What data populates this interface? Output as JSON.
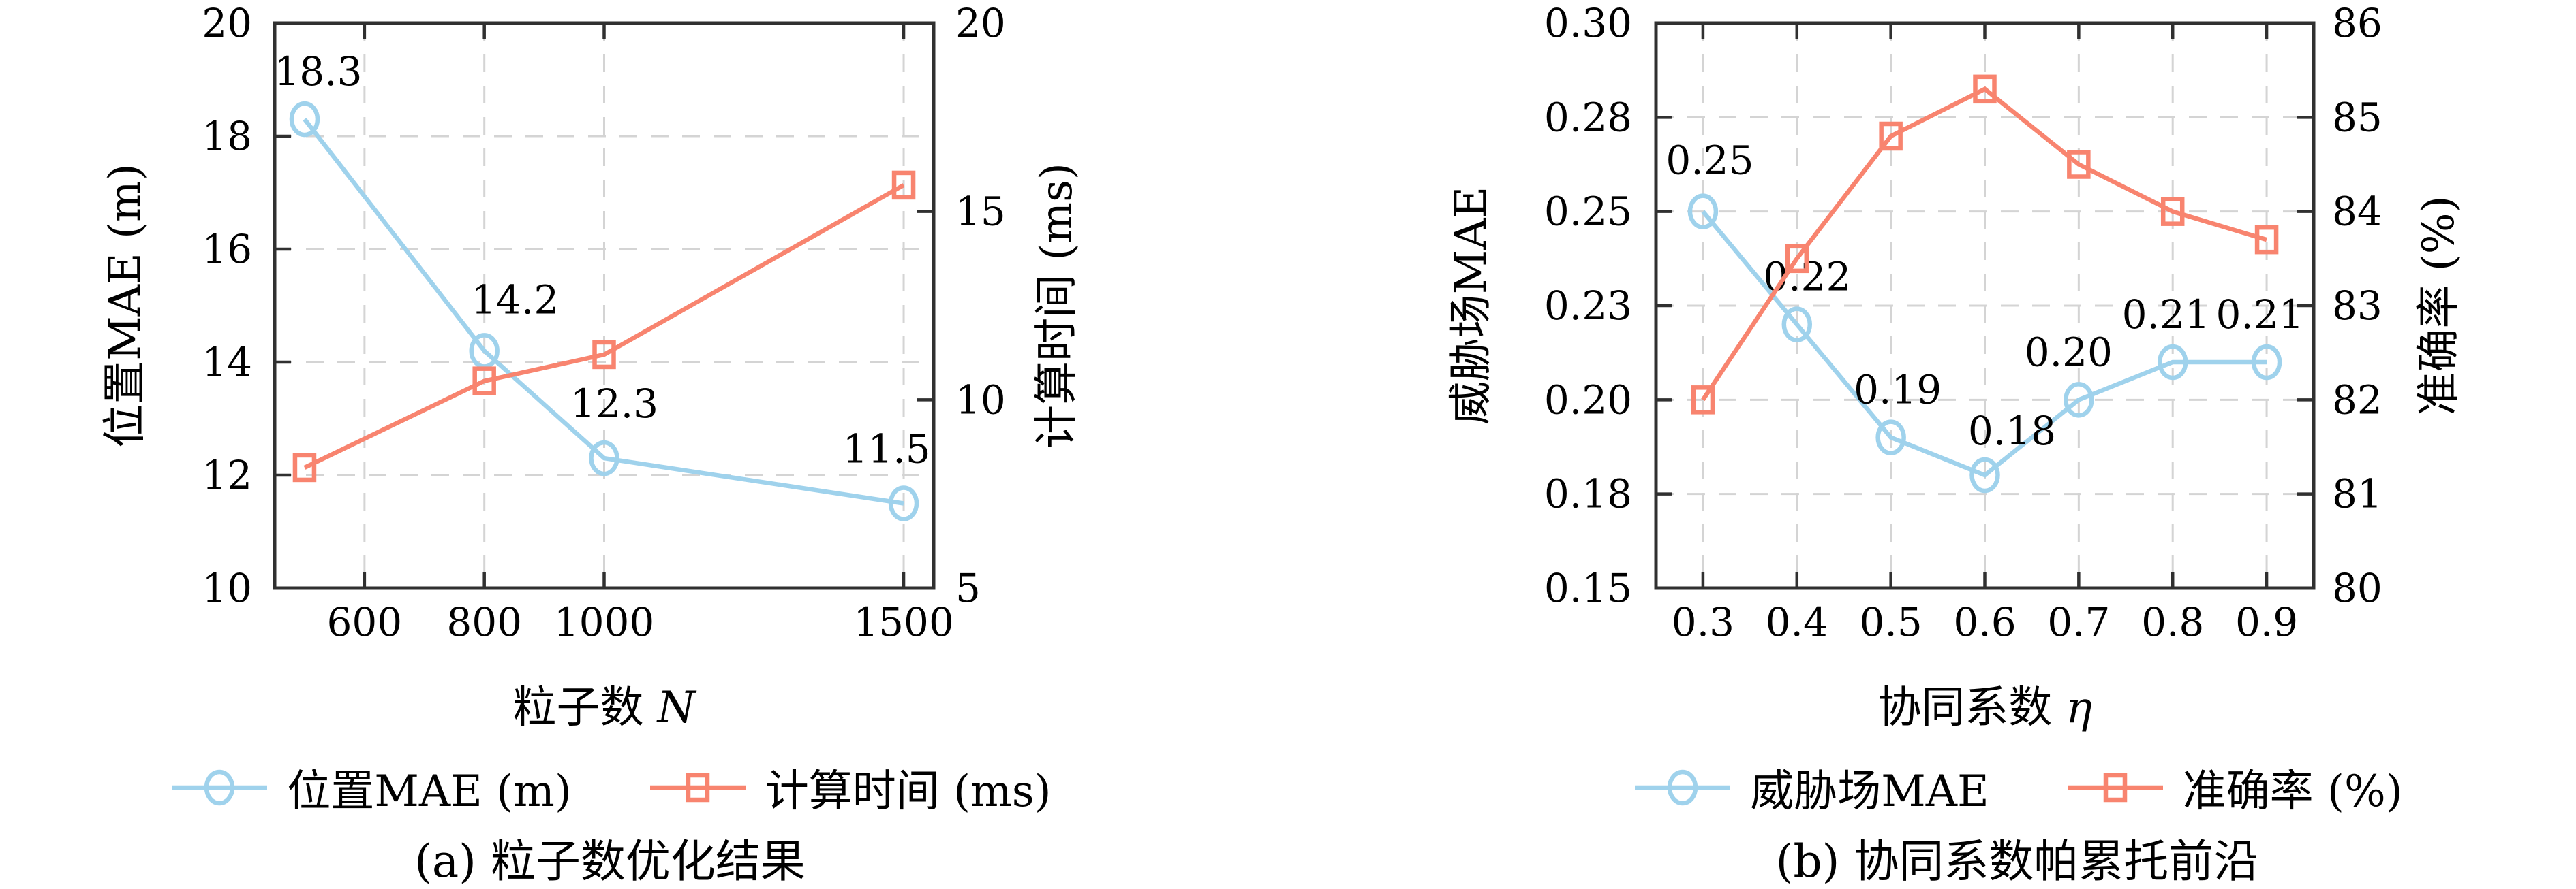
{
  "page": {
    "background": "#ffffff"
  },
  "colors": {
    "series_blue": "#9FD2EC",
    "series_red": "#F8846F",
    "gridline": "#D4D4D4",
    "axis": "#303030",
    "text": "#000000"
  },
  "chart_data": [
    {
      "type": "line",
      "id": "a",
      "caption": "(a) 粒子数优化结果",
      "xlabel": "粒子数 N",
      "xlabel_text": "粒子数",
      "xlabel_var": "N",
      "xlim": [
        450,
        1550
      ],
      "x": [
        500,
        800,
        1000,
        1500
      ],
      "xticks": [
        600,
        800,
        1000,
        1500
      ],
      "xtick_labels": [
        "600",
        "800",
        "1000",
        "1500"
      ],
      "ylabel_left": "位置MAE (m)",
      "ylabel_right": "计算时间 (ms)",
      "ylim_left": [
        10,
        20
      ],
      "ylim_right": [
        5,
        20
      ],
      "yticks_left": {
        "positions": [
          10,
          12,
          14,
          16,
          18,
          20
        ],
        "labels": [
          "10",
          "12",
          "14",
          "16",
          "18",
          "20"
        ]
      },
      "yticks_right": {
        "positions": [
          5,
          10,
          15,
          20
        ],
        "labels": [
          "5",
          "10",
          "15",
          "20"
        ]
      },
      "grid_y_left": [
        12,
        14,
        16,
        18
      ],
      "grid": true,
      "legend_position": "bottom",
      "series": [
        {
          "name": "位置MAE (m)",
          "axis": "left",
          "marker": "circle",
          "color": "#9FD2EC",
          "values": [
            18.3,
            14.2,
            12.3,
            11.5
          ],
          "point_labels": [
            "18.3",
            "14.2",
            "12.3",
            "11.5"
          ],
          "label_offsets": [
            [
              20,
              -50
            ],
            [
              45,
              -55
            ],
            [
              15,
              -60
            ],
            [
              -25,
              -60
            ]
          ]
        },
        {
          "name": "计算时间 (ms)",
          "axis": "right",
          "marker": "square",
          "color": "#F8846F",
          "values": [
            8.2,
            10.5,
            11.2,
            15.7
          ]
        }
      ]
    },
    {
      "type": "line",
      "id": "b",
      "caption": "(b) 协同系数帕累托前沿",
      "xlabel": "协同系数 η",
      "xlabel_text": "协同系数",
      "xlabel_var": "η",
      "xlim": [
        0.25,
        0.95
      ],
      "x": [
        0.3,
        0.4,
        0.5,
        0.6,
        0.7,
        0.8,
        0.9
      ],
      "xticks": [
        0.3,
        0.4,
        0.5,
        0.6,
        0.7,
        0.8,
        0.9
      ],
      "xtick_labels": [
        "0.3",
        "0.4",
        "0.5",
        "0.6",
        "0.7",
        "0.8",
        "0.9"
      ],
      "ylabel_left": "威胁场MAE",
      "ylabel_right": "准确率 (%)",
      "ylim_left": [
        0.15,
        0.3
      ],
      "ylim_right": [
        80,
        86
      ],
      "yticks_left": {
        "positions": [
          0.15,
          0.175,
          0.2,
          0.225,
          0.25,
          0.275,
          0.3
        ],
        "labels": [
          "0.15",
          "0.18",
          "0.20",
          "0.23",
          "0.25",
          "0.28",
          "0.30"
        ]
      },
      "yticks_right": {
        "positions": [
          80,
          81,
          82,
          83,
          84,
          85,
          86
        ],
        "labels": [
          "80",
          "81",
          "82",
          "83",
          "84",
          "85",
          "86"
        ]
      },
      "grid_y_left": [
        0.175,
        0.2,
        0.225,
        0.25,
        0.275
      ],
      "grid": true,
      "legend_position": "bottom",
      "series": [
        {
          "name": "威胁场MAE",
          "axis": "left",
          "marker": "circle",
          "color": "#9FD2EC",
          "values": [
            0.25,
            0.22,
            0.19,
            0.18,
            0.2,
            0.21,
            0.21
          ],
          "point_labels": [
            "0.25",
            "0.22",
            "0.19",
            "0.18",
            "0.20",
            "0.21",
            "0.21"
          ],
          "label_offsets": [
            [
              10,
              -55
            ],
            [
              15,
              -50
            ],
            [
              10,
              -50
            ],
            [
              40,
              -45
            ],
            [
              -15,
              -50
            ],
            [
              -10,
              -50
            ],
            [
              -10,
              -50
            ]
          ]
        },
        {
          "name": "准确率 (%)",
          "axis": "right",
          "marker": "square",
          "color": "#F8846F",
          "values": [
            82.0,
            83.5,
            84.8,
            85.3,
            84.5,
            84.0,
            83.7
          ]
        }
      ]
    }
  ]
}
